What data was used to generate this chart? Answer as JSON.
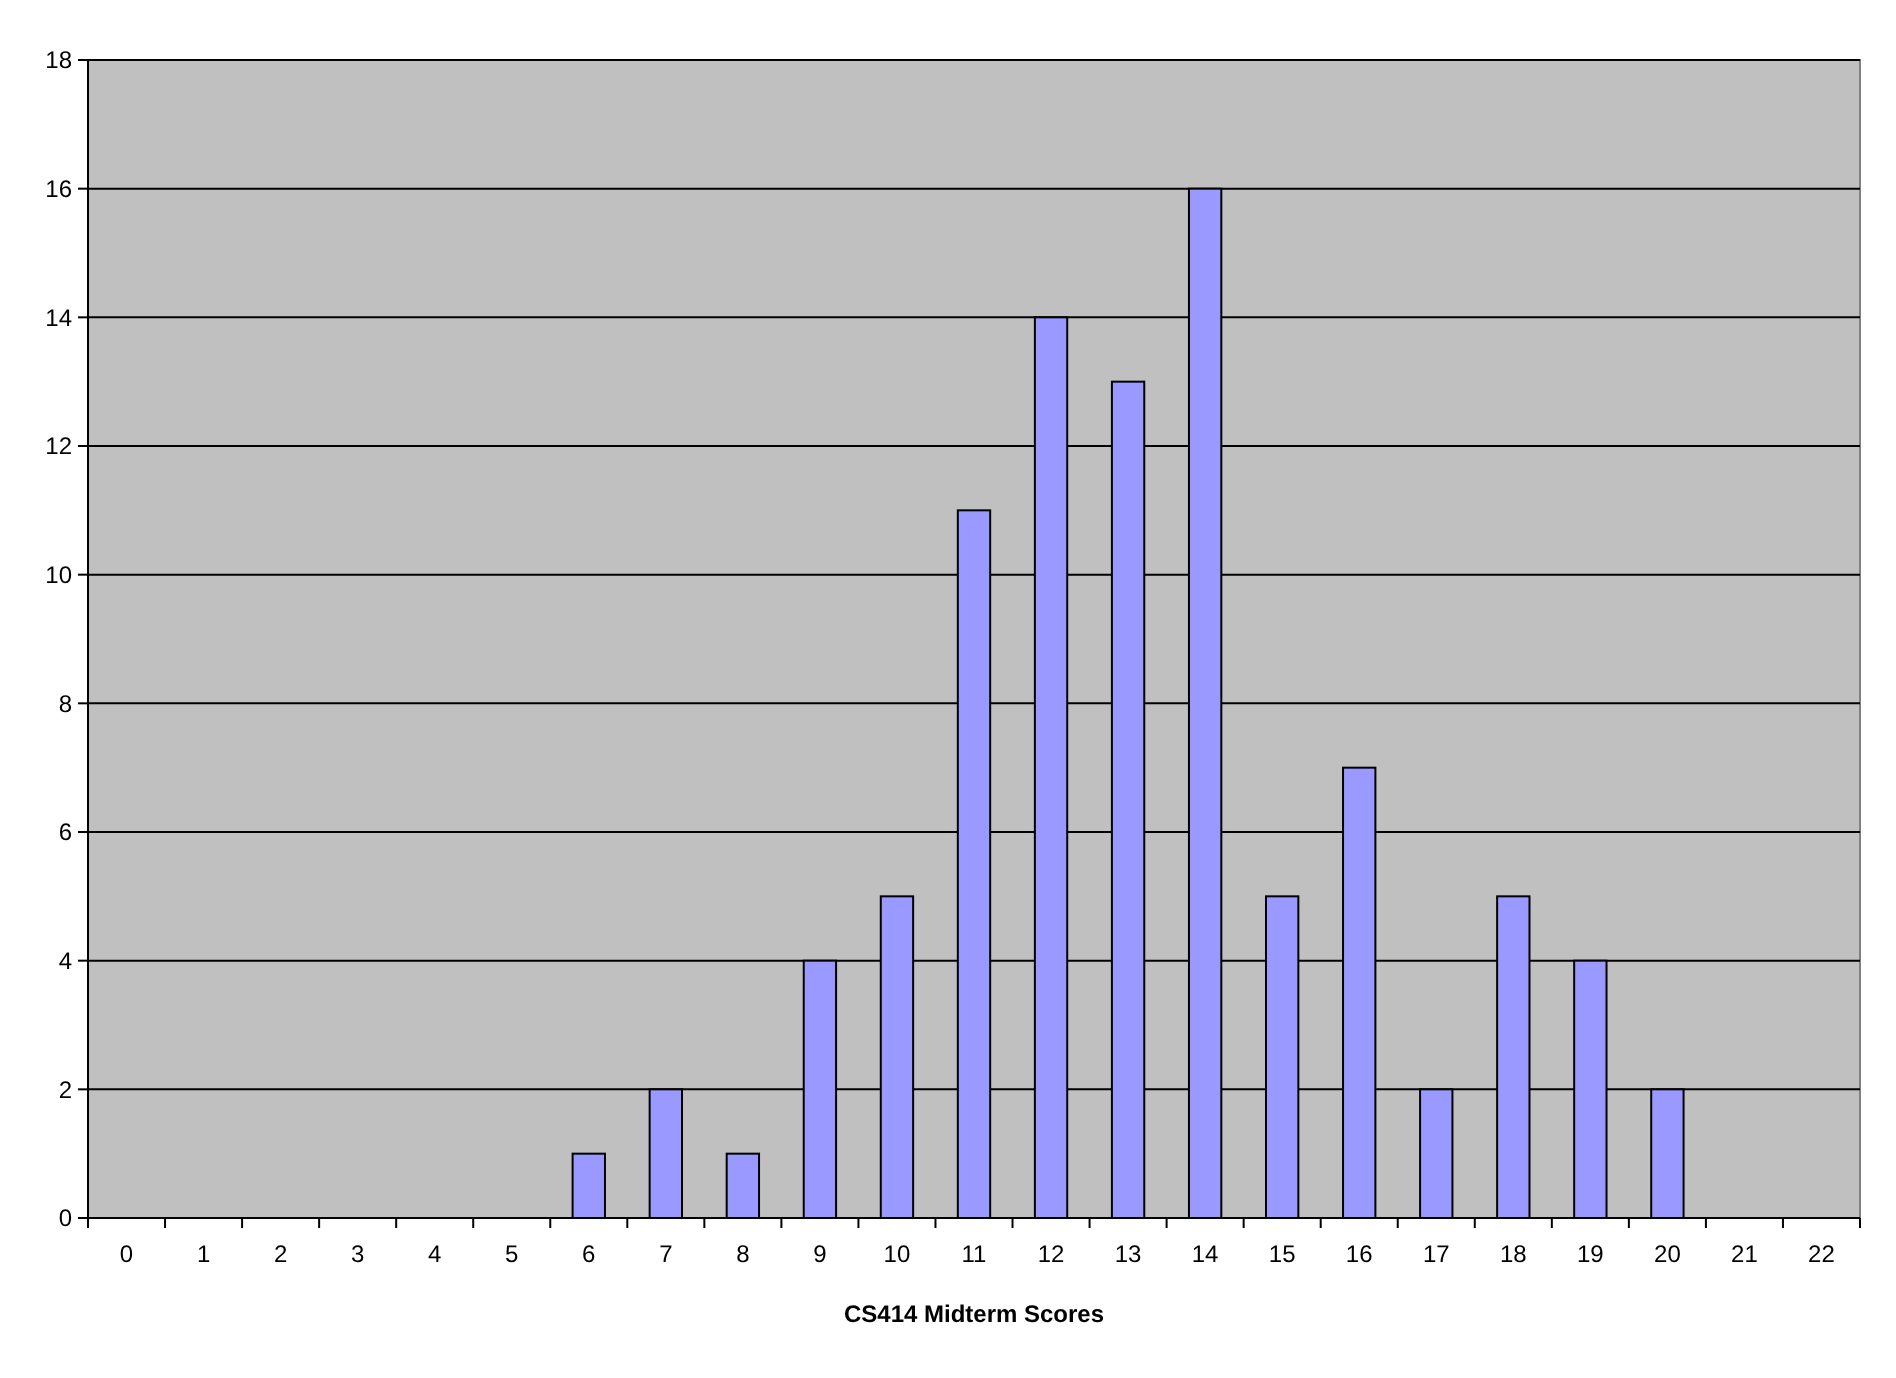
{
  "chart_data": {
    "type": "bar",
    "xlabel": "CS414 Midterm Scores",
    "categories": [
      "0",
      "1",
      "2",
      "3",
      "4",
      "5",
      "6",
      "7",
      "8",
      "9",
      "10",
      "11",
      "12",
      "13",
      "14",
      "15",
      "16",
      "17",
      "18",
      "19",
      "20",
      "21",
      "22"
    ],
    "values": [
      0,
      0,
      0,
      0,
      0,
      0,
      1,
      2,
      1,
      4,
      5,
      11,
      14,
      13,
      16,
      5,
      7,
      2,
      5,
      4,
      2,
      0,
      0
    ],
    "color": "#9999ff",
    "ylim": [
      0,
      18
    ],
    "yticks": [
      0,
      2,
      4,
      6,
      8,
      10,
      12,
      14,
      16,
      18
    ],
    "grid": "y"
  }
}
